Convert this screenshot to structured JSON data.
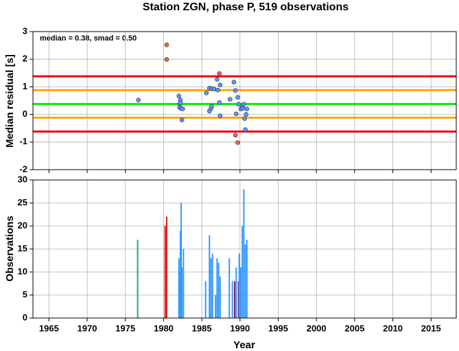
{
  "chart_data": [
    {
      "type": "scatter",
      "title": "Station ZGN, phase P, 519 observations",
      "annotation": "median = 0.38, smad = 0.50",
      "ylabel": "Median residual [s]",
      "xlim": [
        1962.9,
        2018.3
      ],
      "ylim": [
        -2,
        3
      ],
      "yticks": [
        -2,
        -1,
        0,
        1,
        2,
        3
      ],
      "grid": true,
      "hlines": [
        {
          "value": 1.38,
          "color": "#ee0000"
        },
        {
          "value": 0.88,
          "color": "#ffa500"
        },
        {
          "value": 0.38,
          "color": "#00ee00"
        },
        {
          "value": -0.12,
          "color": "#ffa500"
        },
        {
          "value": -0.62,
          "color": "#ee0000"
        }
      ],
      "series": [
        {
          "color": "#ff5a4a",
          "x": [
            1980.4,
            1980.4,
            1987.3,
            1989.4,
            1989.7
          ],
          "values": [
            2.52,
            1.99,
            1.48,
            -0.75,
            -1.02
          ]
        },
        {
          "color": "#5a96ff",
          "x": [
            1976.7,
            1982.0,
            1982.1,
            1982.2,
            1982.2,
            1982.1,
            1982.3,
            1982.5,
            1982.4,
            1985.6,
            1986.0,
            1986.3,
            1986.6,
            1986.0,
            1986.2,
            1986.3,
            1987.0,
            1987.1,
            1987.4,
            1987.3,
            1987.4,
            1988.7,
            1989.2,
            1989.4,
            1989.7,
            1989.5,
            1989.8,
            1990.1,
            1990.3,
            1990.5,
            1990.4,
            1990.6,
            1990.7,
            1990.9,
            1990.8
          ],
          "values": [
            0.52,
            0.67,
            0.37,
            0.52,
            0.42,
            0.25,
            0.22,
            0.2,
            -0.2,
            0.78,
            0.95,
            0.94,
            0.92,
            0.12,
            0.22,
            0.3,
            1.27,
            0.88,
            1.07,
            0.43,
            -0.05,
            0.55,
            1.17,
            0.87,
            0.62,
            0.02,
            0.37,
            0.2,
            0.27,
            0.37,
            0.22,
            -0.15,
            -0.55,
            0.2,
            0.0
          ]
        }
      ]
    },
    {
      "type": "bar",
      "xlabel": "Year",
      "ylabel": "Observations",
      "xlim": [
        1962.9,
        2018.3
      ],
      "xticks": [
        1965,
        1970,
        1975,
        1980,
        1985,
        1990,
        1995,
        2000,
        2005,
        2010,
        2015
      ],
      "ylim": [
        0,
        30
      ],
      "yticks": [
        0,
        5,
        10,
        15,
        20,
        25,
        30
      ],
      "grid": true,
      "series": [
        {
          "color": "#2a9d9a",
          "x": [
            1976.6
          ],
          "values": [
            17
          ]
        },
        {
          "color": "#dd1010",
          "x": [
            1980.2,
            1980.4
          ],
          "values": [
            20,
            22
          ]
        },
        {
          "color": "#8b1a5a",
          "x": [
            1989.3,
            1989.8
          ],
          "values": [
            8,
            8
          ]
        },
        {
          "color": "#3399ff",
          "x": [
            1982.0,
            1982.1,
            1982.2,
            1982.3,
            1982.4,
            1982.6,
            1985.5,
            1986.0,
            1986.2,
            1986.4,
            1986.8,
            1987.0,
            1987.2,
            1987.4,
            1988.6,
            1989.0,
            1989.5,
            1989.9,
            1990.1,
            1990.3,
            1990.5,
            1990.7,
            1990.9
          ],
          "values": [
            13,
            10,
            19,
            25,
            11,
            15,
            8,
            18,
            13,
            14,
            5,
            13,
            12,
            9,
            13,
            8,
            11,
            14,
            11,
            20,
            28,
            16,
            17
          ]
        }
      ]
    }
  ]
}
